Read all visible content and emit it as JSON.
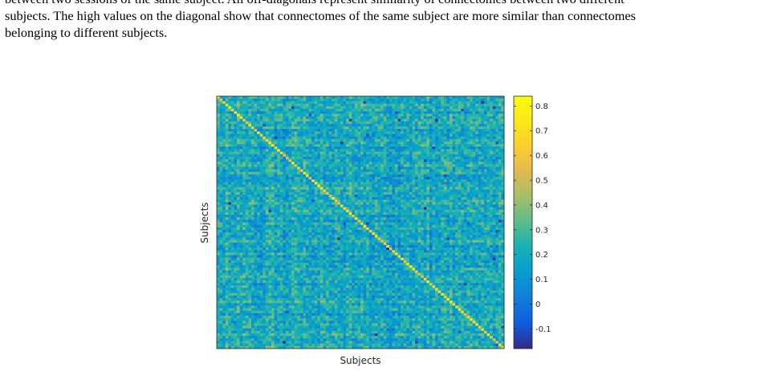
{
  "caption": {
    "lines": [
      "between two sessions of the same subject. All off-diagonals represent similarity of connectomes between two different",
      "subjects. The high values on the diagonal show that connectomes of the same subject are more similar than connectomes",
      "belonging to different subjects."
    ]
  },
  "chart_data": {
    "type": "heatmap",
    "title": "",
    "xlabel": "Subjects",
    "ylabel": "Subjects",
    "n_subjects": 100,
    "colormap": "parula",
    "value_range": [
      -0.18,
      0.84
    ],
    "typical_off_diagonal_range": [
      0.05,
      0.4
    ],
    "typical_diagonal_range": [
      0.55,
      0.78
    ],
    "colorbar": {
      "ticks": [
        -0.1,
        0,
        0.1,
        0.2,
        0.3,
        0.4,
        0.5,
        0.6,
        0.7,
        0.8
      ],
      "tick_labels": [
        "-0.1",
        "0",
        "0.1",
        "0.2",
        "0.3",
        "0.4",
        "0.5",
        "0.6",
        "0.7",
        "0.8"
      ],
      "location": "right"
    },
    "xticks_shown": false,
    "yticks_shown": false
  }
}
